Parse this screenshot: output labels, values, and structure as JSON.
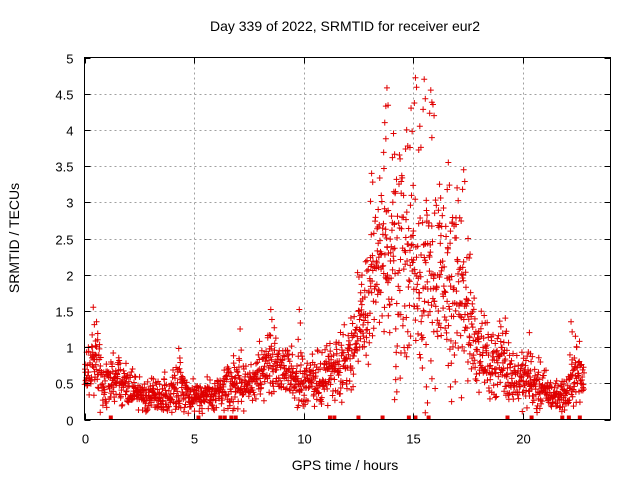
{
  "chart_data": {
    "type": "scatter",
    "title": "Day 339 of 2022, SRMTID for receiver eur2",
    "xlabel": "GPS time / hours",
    "ylabel": "SRMTID / TECUs",
    "xlim": [
      0,
      24
    ],
    "ylim": [
      0,
      5
    ],
    "xticks": [
      0,
      5,
      10,
      15,
      20
    ],
    "yticks": [
      0,
      0.5,
      1,
      1.5,
      2,
      2.5,
      3,
      3.5,
      4,
      4.5,
      5
    ],
    "xtick_labels": [
      "0",
      "5",
      "10",
      "15",
      "20"
    ],
    "ytick_labels": [
      "0",
      "0.5",
      "1",
      "1.5",
      "2",
      "2.5",
      "3",
      "3.5",
      "4",
      "4.5",
      "5"
    ],
    "grid": true,
    "marker": "+",
    "color": "#e00000",
    "envelope": [
      [
        0.0,
        0.55,
        0.25
      ],
      [
        0.3,
        0.75,
        0.35
      ],
      [
        0.6,
        0.7,
        0.3
      ],
      [
        1.0,
        0.5,
        0.25
      ],
      [
        1.5,
        0.55,
        0.25
      ],
      [
        2.0,
        0.45,
        0.2
      ],
      [
        2.5,
        0.35,
        0.15
      ],
      [
        3.0,
        0.3,
        0.15
      ],
      [
        3.5,
        0.32,
        0.15
      ],
      [
        4.0,
        0.38,
        0.2
      ],
      [
        4.4,
        0.45,
        0.3
      ],
      [
        4.8,
        0.3,
        0.15
      ],
      [
        5.5,
        0.35,
        0.15
      ],
      [
        6.0,
        0.3,
        0.15
      ],
      [
        6.5,
        0.45,
        0.2
      ],
      [
        7.0,
        0.5,
        0.25
      ],
      [
        7.5,
        0.45,
        0.2
      ],
      [
        8.0,
        0.6,
        0.25
      ],
      [
        8.5,
        0.85,
        0.3
      ],
      [
        9.0,
        0.7,
        0.25
      ],
      [
        9.5,
        0.6,
        0.25
      ],
      [
        10.0,
        0.5,
        0.25
      ],
      [
        10.5,
        0.5,
        0.25
      ],
      [
        11.0,
        0.6,
        0.3
      ],
      [
        11.5,
        0.75,
        0.3
      ],
      [
        12.0,
        0.85,
        0.35
      ],
      [
        12.5,
        1.2,
        0.5
      ],
      [
        13.0,
        1.7,
        0.7
      ],
      [
        13.5,
        2.1,
        0.9
      ],
      [
        14.0,
        2.3,
        1.0
      ],
      [
        14.5,
        2.2,
        1.0
      ],
      [
        15.0,
        2.1,
        1.0
      ],
      [
        15.5,
        2.0,
        0.95
      ],
      [
        16.0,
        1.9,
        0.9
      ],
      [
        16.5,
        1.8,
        0.8
      ],
      [
        17.0,
        1.7,
        0.7
      ],
      [
        17.5,
        1.4,
        0.6
      ],
      [
        18.0,
        1.0,
        0.4
      ],
      [
        18.5,
        0.75,
        0.3
      ],
      [
        19.0,
        0.85,
        0.35
      ],
      [
        19.5,
        0.6,
        0.25
      ],
      [
        20.0,
        0.55,
        0.25
      ],
      [
        20.5,
        0.5,
        0.25
      ],
      [
        21.0,
        0.4,
        0.2
      ],
      [
        21.5,
        0.3,
        0.15
      ],
      [
        22.0,
        0.35,
        0.15
      ],
      [
        22.5,
        0.7,
        0.3
      ],
      [
        22.8,
        0.55,
        0.2
      ]
    ],
    "peaks": [
      [
        0.4,
        1.55
      ],
      [
        0.55,
        1.35
      ],
      [
        4.3,
        0.98
      ],
      [
        6.8,
        0.88
      ],
      [
        7.1,
        1.25
      ],
      [
        8.5,
        1.52
      ],
      [
        9.8,
        1.52
      ],
      [
        11.2,
        1.05
      ],
      [
        12.6,
        1.75
      ],
      [
        13.1,
        3.4
      ],
      [
        13.4,
        2.9
      ],
      [
        13.7,
        4.1
      ],
      [
        13.8,
        4.58
      ],
      [
        14.1,
        3.95
      ],
      [
        14.4,
        3.6
      ],
      [
        14.7,
        4.0
      ],
      [
        14.9,
        4.3
      ],
      [
        15.1,
        4.72
      ],
      [
        15.3,
        4.05
      ],
      [
        15.5,
        4.7
      ],
      [
        15.8,
        4.55
      ],
      [
        15.9,
        4.35
      ],
      [
        16.2,
        3.25
      ],
      [
        16.6,
        3.55
      ],
      [
        17.0,
        3.2
      ],
      [
        17.3,
        3.45
      ],
      [
        17.5,
        2.5
      ],
      [
        19.2,
        1.4
      ],
      [
        20.3,
        1.2
      ],
      [
        22.2,
        1.35
      ],
      [
        22.4,
        1.15
      ],
      [
        14.2,
        0.55
      ],
      [
        15.6,
        0.45
      ],
      [
        16.7,
        0.45
      ],
      [
        17.2,
        0.3
      ]
    ],
    "gap_markers_x": [
      1.2,
      5.2,
      6.2,
      6.4,
      6.7,
      6.9,
      11.2,
      11.4,
      12.5,
      13.6,
      14.8,
      15.1,
      15.7,
      19.3,
      20.4,
      21.8,
      22.1,
      22.6
    ]
  }
}
